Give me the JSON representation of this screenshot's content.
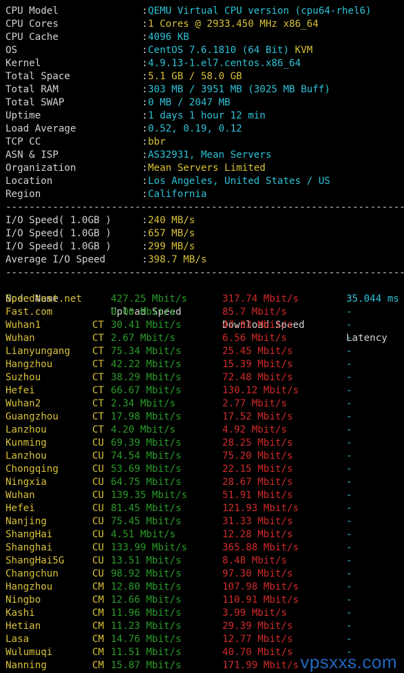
{
  "sysinfo": [
    {
      "key": "CPU Model",
      "value": "QEMU Virtual CPU version (cpu64-rhel6)"
    },
    {
      "key": "CPU Cores",
      "value": "1 Cores @ 2933.450 MHz x86_64",
      "yellow": true
    },
    {
      "key": "CPU Cache",
      "value": "4096 KB"
    },
    {
      "key": "OS",
      "value": "CentOS 7.6.1810 (64 Bit)",
      "extra": " KVM"
    },
    {
      "key": "Kernel",
      "value": "4.9.13-1.el7.centos.x86_64"
    },
    {
      "key": "Total Space",
      "value": "5.1 GB / 58.0 GB",
      "yellow": true
    },
    {
      "key": "Total RAM",
      "value": "303 MB / 3951 MB (3025 MB Buff)"
    },
    {
      "key": "Total SWAP",
      "value": "0 MB / 2047 MB"
    },
    {
      "key": "Uptime",
      "value": "1 days 1 hour 12 min"
    },
    {
      "key": "Load Average",
      "value": "0.52, 0.19, 0.12"
    },
    {
      "key": "TCP CC",
      "value": "bbr",
      "yellow": true
    },
    {
      "key": "ASN & ISP",
      "value": "AS32931, Mean Servers"
    },
    {
      "key": "Organization",
      "value": "Mean Servers Limited",
      "yellow": true
    },
    {
      "key": "Location",
      "value": "Los Angeles, United States / US"
    },
    {
      "key": "Region",
      "value": "California"
    }
  ],
  "separator": "--------------------------------------------------------------------------------",
  "colon": ":",
  "io": [
    {
      "key": "I/O Speed( 1.0GB )",
      "value": "240 MB/s"
    },
    {
      "key": "I/O Speed( 1.0GB )",
      "value": "657 MB/s"
    },
    {
      "key": "I/O Speed( 1.0GB )",
      "value": "299 MB/s"
    },
    {
      "key": "Average I/O Speed",
      "value": "398.7 MB/s"
    }
  ],
  "speed_header": {
    "name": "Node Name",
    "up": "Upload Speed",
    "down": "Download Speed",
    "lat": "Latency"
  },
  "nodes": [
    {
      "name": "Speedtest.net",
      "isp": "",
      "up": "427.25 Mbit/s",
      "down": "317.74 Mbit/s",
      "lat": "35.044 ms"
    },
    {
      "name": "Fast.com",
      "isp": "",
      "up": "0.00 Mbit/s",
      "down": "85.7 Mbit/s",
      "lat": "-"
    },
    {
      "name": "Wuhan1",
      "isp": "CT",
      "up": "30.41 Mbit/s",
      "down": "47.83 Mbit/s",
      "lat": "-"
    },
    {
      "name": "Wuhan",
      "isp": "CT",
      "up": "2.67 Mbit/s",
      "down": "6.56 Mbit/s",
      "lat": "-"
    },
    {
      "name": "Lianyungang",
      "isp": "CT",
      "up": "75.34 Mbit/s",
      "down": "25.45 Mbit/s",
      "lat": "-"
    },
    {
      "name": "Hangzhou",
      "isp": "CT",
      "up": "42.22 Mbit/s",
      "down": "15.39 Mbit/s",
      "lat": "-"
    },
    {
      "name": "Suzhou",
      "isp": "CT",
      "up": "38.29 Mbit/s",
      "down": "72.48 Mbit/s",
      "lat": "-"
    },
    {
      "name": "Hefei",
      "isp": "CT",
      "up": "66.67 Mbit/s",
      "down": "130.12 Mbit/s",
      "lat": "-"
    },
    {
      "name": "Wuhan2",
      "isp": "CT",
      "up": "2.34 Mbit/s",
      "down": "2.77 Mbit/s",
      "lat": "-"
    },
    {
      "name": "Guangzhou",
      "isp": "CT",
      "up": "17.98 Mbit/s",
      "down": "17.52 Mbit/s",
      "lat": "-"
    },
    {
      "name": "Lanzhou",
      "isp": "CT",
      "up": "4.20 Mbit/s",
      "down": "4.92 Mbit/s",
      "lat": "-"
    },
    {
      "name": "Kunming",
      "isp": "CU",
      "up": "69.39 Mbit/s",
      "down": "28.25 Mbit/s",
      "lat": "-"
    },
    {
      "name": "Lanzhou",
      "isp": "CU",
      "up": "74.54 Mbit/s",
      "down": "75.20 Mbit/s",
      "lat": "-"
    },
    {
      "name": "Chongqing",
      "isp": "CU",
      "up": "53.69 Mbit/s",
      "down": "22.15 Mbit/s",
      "lat": "-"
    },
    {
      "name": "Ningxia",
      "isp": "CU",
      "up": "64.75 Mbit/s",
      "down": "28.67 Mbit/s",
      "lat": "-"
    },
    {
      "name": "Wuhan",
      "isp": "CU",
      "up": "139.35 Mbit/s",
      "down": "51.91 Mbit/s",
      "lat": "-"
    },
    {
      "name": "Hefei",
      "isp": "CU",
      "up": "81.45 Mbit/s",
      "down": "121.93 Mbit/s",
      "lat": "-"
    },
    {
      "name": "Nanjing",
      "isp": "CU",
      "up": "75.45 Mbit/s",
      "down": "31.33 Mbit/s",
      "lat": "-"
    },
    {
      "name": "ShangHai",
      "isp": "CU",
      "up": "4.51 Mbit/s",
      "down": "12.28 Mbit/s",
      "lat": "-"
    },
    {
      "name": "Shanghai",
      "isp": "CU",
      "up": "133.99 Mbit/s",
      "down": "365.88 Mbit/s",
      "lat": "-"
    },
    {
      "name": "ShangHai5G",
      "isp": "CU",
      "up": "13.51 Mbit/s",
      "down": "8.48 Mbit/s",
      "lat": "-"
    },
    {
      "name": "Changchun",
      "isp": "CU",
      "up": "98.92 Mbit/s",
      "down": "97.30 Mbit/s",
      "lat": "-"
    },
    {
      "name": "Hangzhou",
      "isp": "CM",
      "up": "12.80 Mbit/s",
      "down": "107.98 Mbit/s",
      "lat": "-"
    },
    {
      "name": "Ningbo",
      "isp": "CM",
      "up": "12.66 Mbit/s",
      "down": "110.91 Mbit/s",
      "lat": "-"
    },
    {
      "name": "Kashi",
      "isp": "CM",
      "up": "11.96 Mbit/s",
      "down": "3.99 Mbit/s",
      "lat": "-"
    },
    {
      "name": "Hetian",
      "isp": "CM",
      "up": "11.23 Mbit/s",
      "down": "29.39 Mbit/s",
      "lat": "-"
    },
    {
      "name": "Lasa",
      "isp": "CM",
      "up": "14.76 Mbit/s",
      "down": "12.77 Mbit/s",
      "lat": "-"
    },
    {
      "name": "Wulumuqi",
      "isp": "CM",
      "up": "11.51 Mbit/s",
      "down": "40.70 Mbit/s",
      "lat": "-"
    },
    {
      "name": "Nanning",
      "isp": "CM",
      "up": "15.87 Mbit/s",
      "down": "171.99 Mbit/s",
      "lat": "-"
    }
  ],
  "watermark": "vpsxxs.com",
  "colors": {
    "cyan": "#2ec2d6",
    "yellow": "#d8c13a",
    "green": "#2a9b2a",
    "red": "#d12a2a"
  }
}
